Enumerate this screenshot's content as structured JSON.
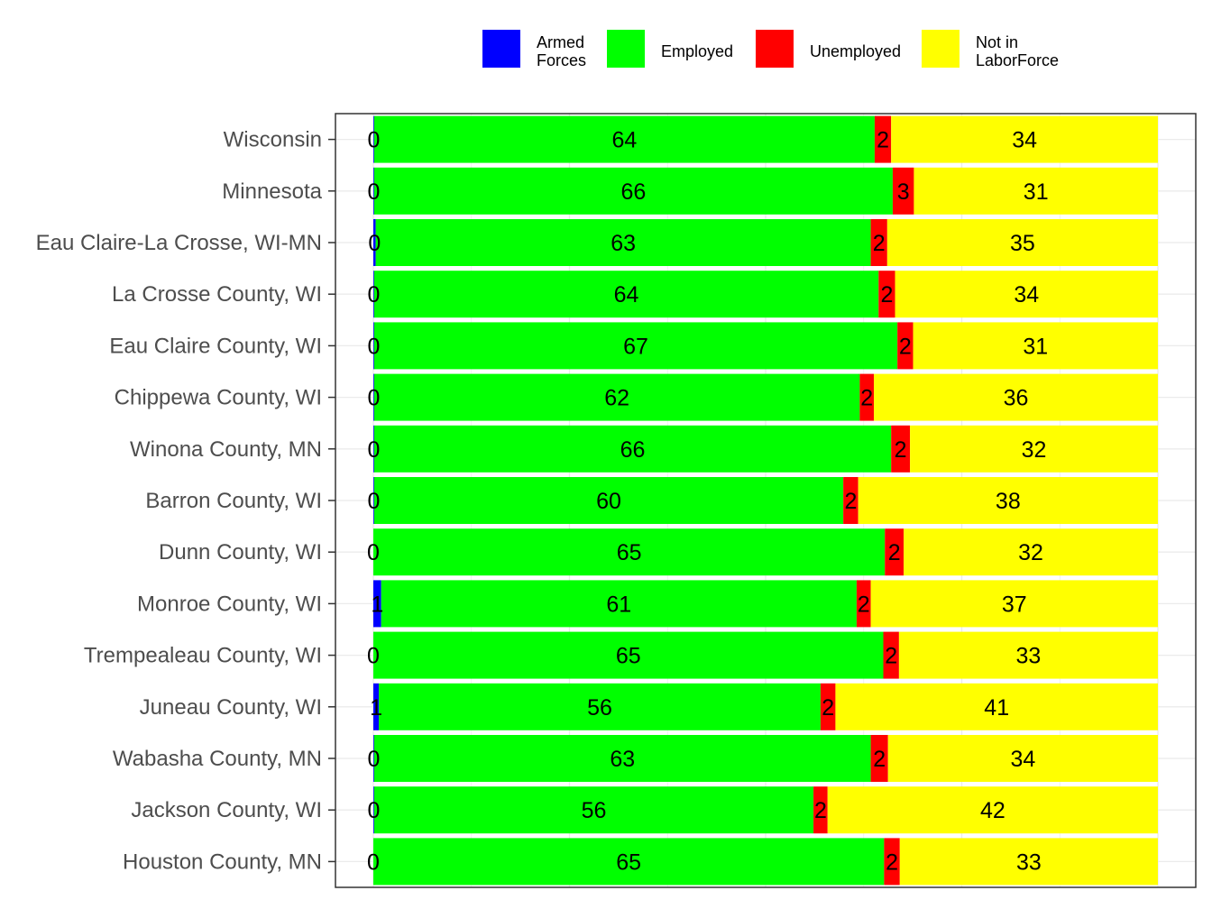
{
  "chart_data": {
    "type": "bar",
    "orientation": "horizontal",
    "stacked": true,
    "stack_normalized": "percent",
    "categories": [
      "Wisconsin",
      "Minnesota",
      "Eau Claire-La Crosse, WI-MN",
      "La Crosse County, WI",
      "Eau Claire County, WI",
      "Chippewa County, WI",
      "Winona County, MN",
      "Barron County, WI",
      "Dunn County, WI",
      "Monroe County, WI",
      "Trempealeau County, WI",
      "Juneau County, WI",
      "Wabasha County, MN",
      "Jackson County, WI",
      "Houston County, MN"
    ],
    "series": [
      {
        "name": "Armed Forces",
        "legend_lines": [
          "Armed",
          "Forces"
        ],
        "color": "#0000ff",
        "values": [
          0.1,
          0.1,
          0.3,
          0.1,
          0.1,
          0.1,
          0.1,
          0.1,
          0.0,
          1.0,
          0.0,
          0.7,
          0.1,
          0.1,
          0.0
        ],
        "labels": [
          "0",
          "0",
          "0",
          "0",
          "0",
          "0",
          "0",
          "0",
          "0",
          "1",
          "0",
          "1",
          "0",
          "0",
          "0"
        ]
      },
      {
        "name": "Employed",
        "legend_lines": [
          "Employed"
        ],
        "color": "#00ff00",
        "values": [
          63.8,
          66.1,
          63.1,
          64.3,
          66.7,
          61.9,
          65.9,
          59.8,
          65.2,
          60.6,
          65.0,
          56.3,
          63.3,
          56.0,
          65.1
        ],
        "labels": [
          "64",
          "66",
          "63",
          "64",
          "67",
          "62",
          "66",
          "60",
          "65",
          "61",
          "65",
          "56",
          "63",
          "56",
          "65"
        ]
      },
      {
        "name": "Unemployed",
        "legend_lines": [
          "Unemployed"
        ],
        "color": "#ff0000",
        "values": [
          2.1,
          2.7,
          2.1,
          2.1,
          2.0,
          1.8,
          2.4,
          1.9,
          2.4,
          1.8,
          2.0,
          1.9,
          2.2,
          1.8,
          2.0
        ],
        "labels": [
          "2",
          "3",
          "2",
          "2",
          "2",
          "2",
          "2",
          "2",
          "2",
          "2",
          "2",
          "2",
          "2",
          "2",
          "2"
        ]
      },
      {
        "name": "Not in LaborForce",
        "legend_lines": [
          "Not in",
          "LaborForce"
        ],
        "color": "#ffff00",
        "values": [
          34.0,
          31.1,
          34.5,
          33.5,
          31.2,
          36.2,
          31.6,
          38.2,
          32.4,
          36.6,
          33.0,
          41.1,
          34.4,
          42.1,
          32.9
        ],
        "labels": [
          "34",
          "31",
          "35",
          "34",
          "31",
          "36",
          "32",
          "38",
          "32",
          "37",
          "33",
          "41",
          "34",
          "42",
          "33"
        ]
      }
    ],
    "xlim": [
      0,
      100
    ],
    "x_tick_labels_shown": false,
    "grid": true,
    "legend_position": "top",
    "title": "",
    "xlabel": "",
    "ylabel": ""
  }
}
